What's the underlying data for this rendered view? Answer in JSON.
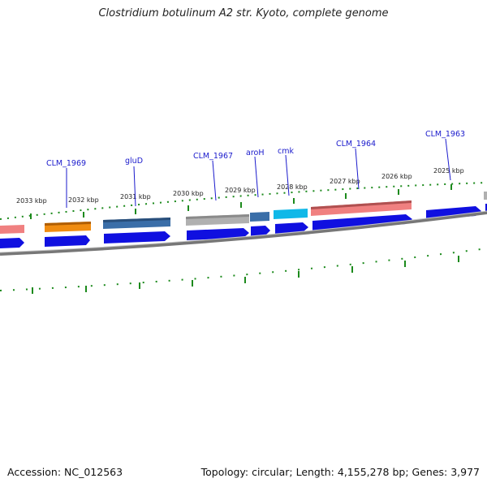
{
  "title": "Clostridium botulinum A2 str. Kyoto, complete genome",
  "footer": {
    "accession": "Accession: NC_012563",
    "summary": "Topology: circular; Length: 4,155,278 bp; Genes: 3,977"
  },
  "kbp_labels": [
    "2033 kbp",
    "2032 kbp",
    "2031 kbp",
    "2030 kbp",
    "2029 kbp",
    "2028 kbp",
    "2027 kbp",
    "2026 kbp",
    "2025 kbp"
  ],
  "gene_labels": [
    "CLM_1969",
    "gluD",
    "CLM_1967",
    "aroH",
    "cmk",
    "CLM_1964",
    "CLM_1963"
  ],
  "colors": {
    "backbone": "#7a7a7a",
    "tick": "#1c8a1c",
    "cds_arrow": "#1010e0",
    "orange_gene": "#f08c10",
    "steelblue_gene": "#3a6ea8",
    "gray_gene": "#b0b0b0",
    "cyan_gene": "#10b8e8",
    "salmon_gene": "#f08080",
    "label_blue": "#1a1acc"
  }
}
